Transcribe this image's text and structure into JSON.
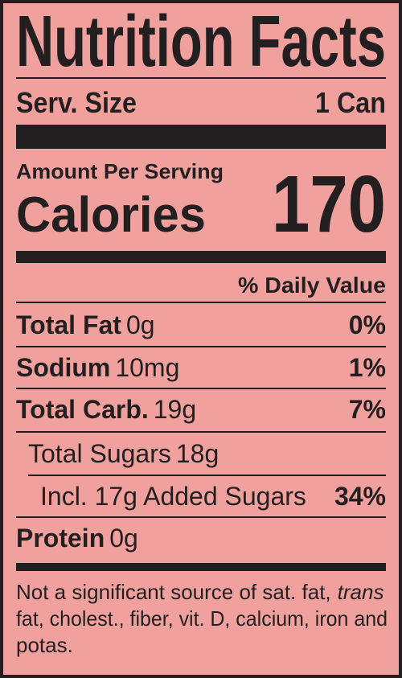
{
  "title": "Nutrition Facts",
  "serving": {
    "label": "Serv. Size",
    "value": "1 Can"
  },
  "amount_per_serving": "Amount Per Serving",
  "calories": {
    "label": "Calories",
    "value": "170"
  },
  "daily_value_header": "% Daily Value",
  "nutrients": [
    {
      "name": "Total Fat",
      "amount": "0g",
      "dv": "0%"
    },
    {
      "name": "Sodium",
      "amount": "10mg",
      "dv": "1%"
    },
    {
      "name": "Total Carb.",
      "amount": "19g",
      "dv": "7%"
    },
    {
      "name": "Total Sugars",
      "amount": "18g"
    },
    {
      "name": "Incl. 17g Added Sugars",
      "dv": "34%"
    },
    {
      "name": "Protein",
      "amount": "0g"
    }
  ],
  "footnote": {
    "lines": [
      "Not a significant source of sat. fat,",
      "fat, cholest., fiber, vit. D, calcium, iron and",
      "potas."
    ],
    "italic": "trans"
  }
}
